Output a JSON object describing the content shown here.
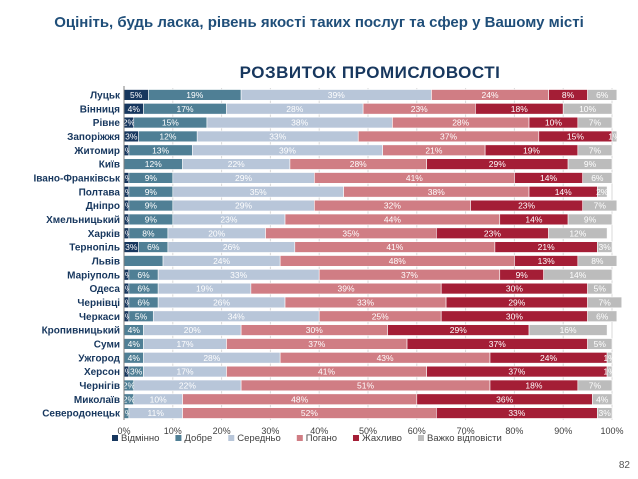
{
  "header": "Оцініть, будь ласка, рівень якості таких послуг та сфер у Вашому місті",
  "page_number": "82",
  "chart_data": {
    "type": "bar",
    "orientation": "horizontal",
    "stacked": "percent",
    "title": "РОЗВИТОК ПРОМИСЛОВОСТІ",
    "xlim": [
      0,
      100
    ],
    "x_ticks": [
      "0%",
      "10%",
      "20%",
      "30%",
      "40%",
      "50%",
      "60%",
      "70%",
      "80%",
      "90%",
      "100%"
    ],
    "grid": "vertical",
    "legend_position": "bottom",
    "categories": [
      "Луцьк",
      "Вінниця",
      "Рівне",
      "Запоріжжя",
      "Житомир",
      "Київ",
      "Івано-Франківськ",
      "Полтава",
      "Дніпро",
      "Хмельницький",
      "Харків",
      "Тернопіль",
      "Львів",
      "Маріуполь",
      "Одеса",
      "Чернівці",
      "Черкаси",
      "Кропивницький",
      "Суми",
      "Ужгород",
      "Херсон",
      "Чернігів",
      "Миколаїв",
      "Северодонецьк"
    ],
    "series": [
      {
        "name": "Відмінно",
        "color": "#17375e",
        "label_color": "#ffffff",
        "values": [
          5,
          4,
          2,
          3,
          1,
          0,
          1,
          1,
          1,
          1,
          1,
          3,
          0,
          1,
          1,
          1,
          1,
          0,
          0,
          0,
          1,
          0,
          0,
          0
        ],
        "labels": [
          "5%",
          "4%",
          "2%",
          "3%",
          "1%",
          "",
          "1%",
          "1%",
          "1%",
          "1%",
          "1%",
          "3%",
          "",
          "1%",
          "1%",
          "1%",
          "1%",
          "",
          "",
          "",
          "1%",
          "",
          "",
          ""
        ]
      },
      {
        "name": "Добре",
        "color": "#4f7f95",
        "label_color": "#ffffff",
        "values": [
          19,
          17,
          15,
          12,
          13,
          12,
          9,
          9,
          9,
          9,
          8,
          6,
          8,
          6,
          6,
          6,
          5,
          4,
          4,
          4,
          3,
          2,
          2,
          1
        ],
        "labels": [
          "19%",
          "17%",
          "15%",
          "12%",
          "13%",
          "12%",
          "9%",
          "9%",
          "9%",
          "9%",
          "8%",
          "6%",
          "",
          "6%",
          "6%",
          "6%",
          "5%",
          "4%",
          "4%",
          "4%",
          "3%",
          "2%",
          "2%",
          "1%"
        ]
      },
      {
        "name": "Середньо",
        "color": "#b8c6d9",
        "label_color": "#ffffff",
        "values": [
          39,
          28,
          38,
          33,
          39,
          22,
          29,
          35,
          29,
          23,
          20,
          26,
          24,
          33,
          19,
          26,
          34,
          20,
          17,
          28,
          17,
          22,
          10,
          11
        ],
        "labels": [
          "39%",
          "28%",
          "38%",
          "33%",
          "39%",
          "22%",
          "29%",
          "35%",
          "29%",
          "23%",
          "20%",
          "26%",
          "24%",
          "33%",
          "19%",
          "26%",
          "34%",
          "20%",
          "17%",
          "28%",
          "17%",
          "22%",
          "10%",
          "11%"
        ]
      },
      {
        "name": "Погано",
        "color": "#d07d84",
        "label_color": "#ffffff",
        "values": [
          24,
          23,
          28,
          37,
          21,
          28,
          41,
          38,
          32,
          44,
          35,
          41,
          48,
          37,
          39,
          33,
          25,
          30,
          37,
          43,
          41,
          51,
          48,
          52
        ],
        "labels": [
          "24%",
          "23%",
          "28%",
          "37%",
          "21%",
          "28%",
          "41%",
          "38%",
          "32%",
          "44%",
          "35%",
          "41%",
          "48%",
          "37%",
          "39%",
          "33%",
          "25%",
          "30%",
          "37%",
          "43%",
          "41%",
          "51%",
          "48%",
          "52%"
        ]
      },
      {
        "name": "Жахливо",
        "color": "#a41e36",
        "label_color": "#ffffff",
        "values": [
          8,
          18,
          10,
          15,
          19,
          29,
          14,
          14,
          23,
          14,
          23,
          21,
          13,
          9,
          30,
          29,
          30,
          29,
          37,
          24,
          37,
          18,
          36,
          33
        ],
        "labels": [
          "8%",
          "18%",
          "10%",
          "15%",
          "19%",
          "29%",
          "14%",
          "14%",
          "23%",
          "14%",
          "23%",
          "21%",
          "13%",
          "9%",
          "30%",
          "29%",
          "30%",
          "29%",
          "37%",
          "24%",
          "37%",
          "18%",
          "36%",
          "33%"
        ]
      },
      {
        "name": "Важко відповісти",
        "color": "#bcbcbc",
        "label_color": "#ffffff",
        "values": [
          6,
          10,
          7,
          1,
          7,
          9,
          6,
          2,
          7,
          9,
          12,
          3,
          8,
          14,
          5,
          7,
          6,
          16,
          5,
          1,
          1,
          7,
          4,
          3
        ],
        "labels": [
          "6%",
          "10%",
          "7%",
          "1%",
          "7%",
          "9%",
          "6%",
          "2%",
          "7%",
          "9%",
          "12%",
          "3%",
          "8%",
          "14%",
          "5%",
          "7%",
          "6%",
          "16%",
          "5%",
          "1%",
          "1%",
          "7%",
          "4%",
          "3%"
        ]
      }
    ]
  }
}
